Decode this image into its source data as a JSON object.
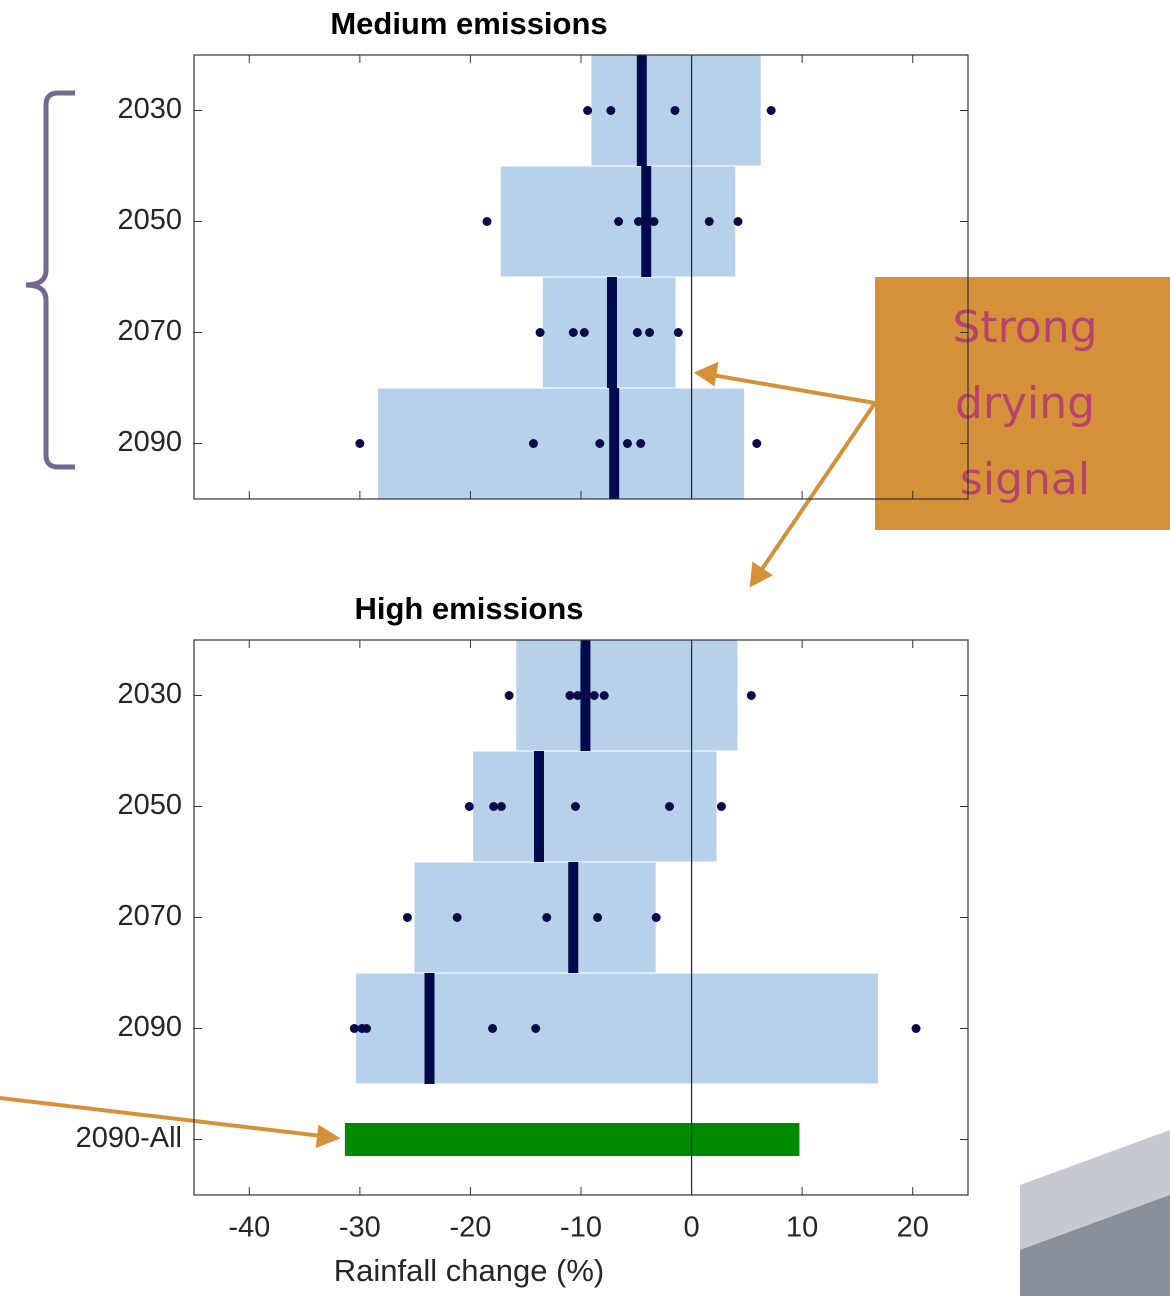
{
  "chart_data": [
    {
      "type": "interval",
      "title": "Medium emissions",
      "categories": [
        "2030",
        "2050",
        "2070",
        "2090"
      ],
      "low": [
        -9.1,
        -17.3,
        -13.5,
        -28.4
      ],
      "high": [
        6.3,
        4.0,
        -1.4,
        4.8
      ],
      "median": [
        -4.5,
        -4.1,
        -7.2,
        -7.0
      ],
      "points": [
        [
          -9.4,
          -7.3,
          -1.5,
          7.2
        ],
        [
          -18.5,
          -6.6,
          -4.8,
          -4.1,
          -3.4,
          1.6,
          4.2
        ],
        [
          -13.7,
          -10.7,
          -9.7,
          -4.9,
          -3.8,
          -1.2
        ],
        [
          -30.0,
          -14.3,
          -8.3,
          -5.8,
          -4.6,
          5.9
        ]
      ],
      "bar_colors": [
        "#b8d1ea",
        "#b8d1ea",
        "#b8d1ea",
        "#b8d1ea"
      ],
      "median_color": "#000a4d",
      "point_color": "#0a0a4a",
      "xlim": [
        -45,
        25
      ],
      "xticks": [
        -40,
        -30,
        -20,
        -10,
        0,
        10,
        20
      ],
      "xtick_labels": false
    },
    {
      "type": "interval",
      "title": "High emissions",
      "categories": [
        "2030",
        "2050",
        "2070",
        "2090",
        "2090-All"
      ],
      "low": [
        -15.9,
        -19.8,
        -25.1,
        -30.4,
        -31.4
      ],
      "high": [
        4.2,
        2.3,
        -3.2,
        16.9,
        9.8
      ],
      "median": [
        -9.6,
        -13.8,
        -10.7,
        -23.7,
        null
      ],
      "points": [
        [
          -16.5,
          -11.0,
          -10.3,
          -9.6,
          -8.8,
          -7.9,
          5.4
        ],
        [
          -20.1,
          -17.9,
          -17.2,
          -10.5,
          -2.0,
          2.7
        ],
        [
          -25.7,
          -21.2,
          -13.1,
          -8.5,
          -3.2
        ],
        [
          -30.5,
          -29.8,
          -29.4,
          -18.0,
          -14.1,
          20.3
        ],
        []
      ],
      "bar_colors": [
        "#b8d1ea",
        "#b8d1ea",
        "#b8d1ea",
        "#b8d1ea",
        "#008a00"
      ],
      "median_color": "#000a4d",
      "point_color": "#0a0a4a",
      "xlim": [
        -45,
        25
      ],
      "xticks": [
        -40,
        -30,
        -20,
        -10,
        0,
        10,
        20
      ],
      "xtick_labels": true,
      "x_label": "Rainfall change (%)"
    }
  ],
  "annotation": {
    "lines": [
      "Strong",
      "drying",
      "signal"
    ]
  }
}
